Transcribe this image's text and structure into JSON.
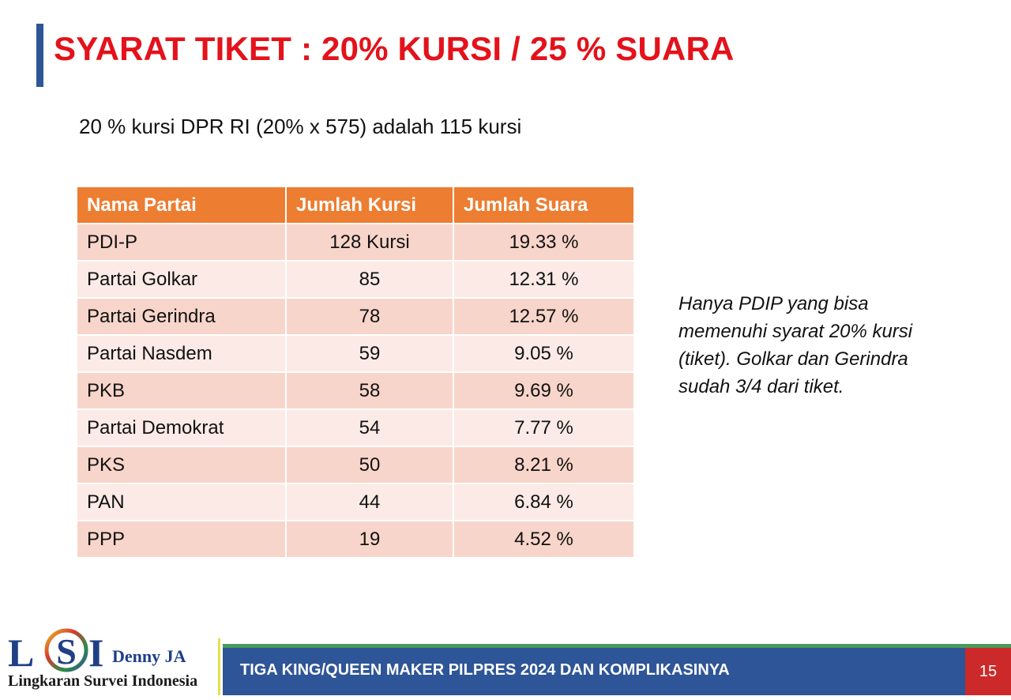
{
  "title": "SYARAT TIKET : 20% KURSI / 25 % SUARA",
  "subtitle": "20 % kursi DPR RI (20% x 575) adalah 115 kursi",
  "table": {
    "headers": [
      "Nama Partai",
      "Jumlah Kursi",
      "Jumlah Suara"
    ],
    "rows": [
      [
        "PDI-P",
        "128 Kursi",
        "19.33 %"
      ],
      [
        "Partai Golkar",
        "85",
        "12.31 %"
      ],
      [
        "Partai Gerindra",
        "78",
        "12.57 %"
      ],
      [
        "Partai Nasdem",
        "59",
        "9.05 %"
      ],
      [
        "PKB",
        "58",
        "9.69 %"
      ],
      [
        "Partai Demokrat",
        "54",
        "7.77 %"
      ],
      [
        "PKS",
        "50",
        "8.21 %"
      ],
      [
        "PAN",
        "44",
        "6.84 %"
      ],
      [
        "PPP",
        "19",
        "4.52 %"
      ]
    ]
  },
  "note": "Hanya PDIP yang bisa memenuhi syarat 20% kursi (tiket). Golkar dan Gerindra sudah 3/4 dari tiket.",
  "logo": {
    "letters": [
      "L",
      "S",
      "I"
    ],
    "brand": "Denny JA",
    "tagline": "Lingkaran Survei Indonesia"
  },
  "footer": {
    "text": "TIGA KING/QUEEN MAKER PILPRES 2024 DAN KOMPLIKASINYA",
    "page_number": "15"
  },
  "colors": {
    "title": "#e3121b",
    "accent_blue": "#2e5597",
    "header_orange": "#ed7d31",
    "row_dark": "#f8d5ca",
    "row_light": "#fbeae5",
    "page_badge": "#cc2a2a"
  }
}
